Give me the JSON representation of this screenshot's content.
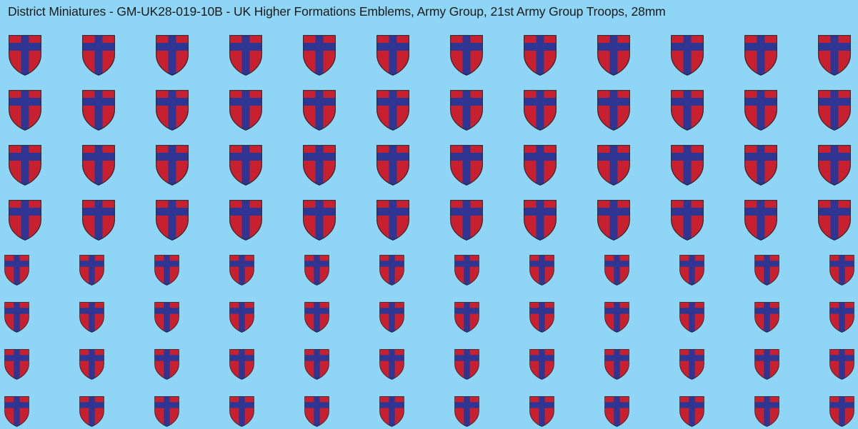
{
  "sheet": {
    "title": "District Miniatures - GM-UK28-019-10B - UK Higher Formations Emblems, Army Group, 21st Army Group Troops, 28mm"
  },
  "emblem": {
    "name": "21st Army Group",
    "shape": "shield",
    "field_color": "#c8202f",
    "cross_color": "#2f3592",
    "outline_color": "#222222"
  },
  "colors": {
    "background": "#8fd5f5",
    "title_text": "#1a1a1a"
  },
  "emblem_sets": [
    {
      "size": "large",
      "rows": 4,
      "columns": 12,
      "count": 48
    },
    {
      "size": "small",
      "rows": 4,
      "columns": 12,
      "count": 48
    }
  ]
}
